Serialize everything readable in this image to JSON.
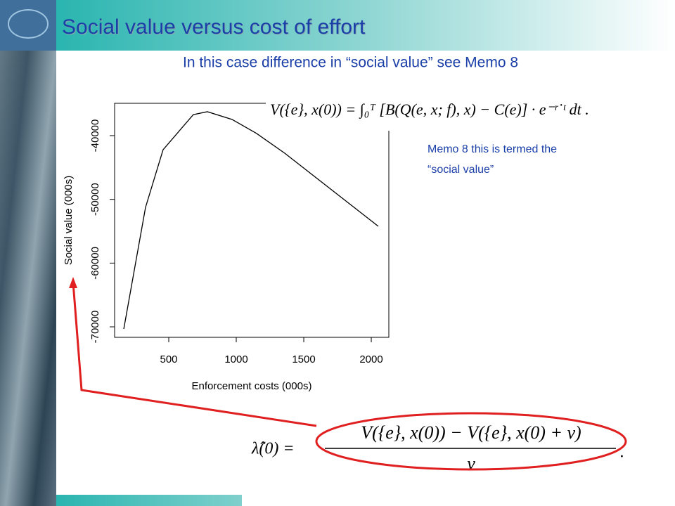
{
  "slide": {
    "title": "Social value versus cost of effort",
    "subtitle": "In this case difference in “social value” see Memo 8",
    "equation_1": "V({e}, x(0)) = ∫₀ᵀ [B(Q(e, x; f), x) − C(e)] · e⁻ʳ˙ᵗ dt .",
    "note": [
      "Memo 8 this is termed the",
      "“social value”"
    ],
    "equation_2": {
      "lhs": "λ̂(0) =",
      "numerator": "V({e}, x(0)) − V({e}, x(0) + ν)",
      "denominator": "ν",
      "end": "."
    }
  },
  "chart_data": {
    "type": "line",
    "x_label": "Enforcement costs (000s)",
    "y_label": "Social value (000s)",
    "x": [
      167,
      328,
      458,
      682,
      786,
      969,
      1151,
      1359,
      2052
    ],
    "series": [
      {
        "color": "#000000",
        "values": [
          -70330,
          -51260,
          -42210,
          -36700,
          -36250,
          -37460,
          -39670,
          -42760,
          -54230
        ]
      }
    ],
    "xlim": [
      99,
      2130
    ],
    "ylim": [
      -71650,
      -34930
    ],
    "xticks": [
      500,
      1000,
      1500,
      2000
    ],
    "yticks": [
      -70000,
      -60000,
      -50000,
      -40000
    ]
  }
}
